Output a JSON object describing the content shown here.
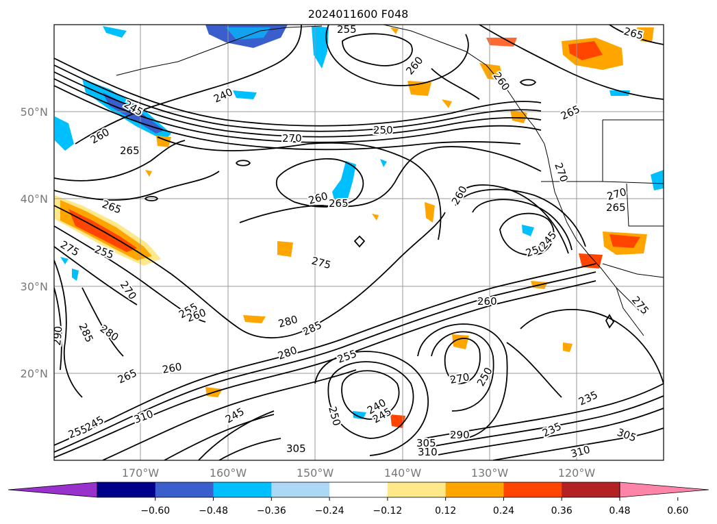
{
  "title": "2024011600 F048",
  "lat_labels": [
    "50°N",
    "40°N",
    "30°N",
    "20°N"
  ],
  "lon_labels": [
    "170°W",
    "160°W",
    "150°W",
    "140°W",
    "130°W",
    "120°W"
  ],
  "contour_labels": [
    "255",
    "265",
    "260",
    "240",
    "245",
    "260",
    "265",
    "270",
    "250",
    "260",
    "265",
    "260",
    "265",
    "270",
    "265",
    "270",
    "265",
    "275",
    "255",
    "270",
    "260",
    "275",
    "250",
    "245",
    "280",
    "285",
    "290",
    "285",
    "280",
    "255",
    "260",
    "255",
    "265",
    "260",
    "250",
    "245",
    "240",
    "270",
    "250",
    "260",
    "235",
    "255",
    "245",
    "245",
    "235",
    "290",
    "305",
    "310",
    "305",
    "310",
    "310",
    "305",
    "280",
    "275"
  ],
  "colorbar": {
    "ticks": [
      "−0.60",
      "−0.48",
      "−0.36",
      "−0.24",
      "−0.12",
      "0.12",
      "0.24",
      "0.36",
      "0.48",
      "0.60"
    ],
    "colors": [
      "#9932cc",
      "#00008b",
      "#3a5fcd",
      "#00bfff",
      "#add8f5",
      "#ffffff",
      "#ffe88a",
      "#ffa500",
      "#ff4500",
      "#b22222",
      "#ff85a8"
    ]
  }
}
